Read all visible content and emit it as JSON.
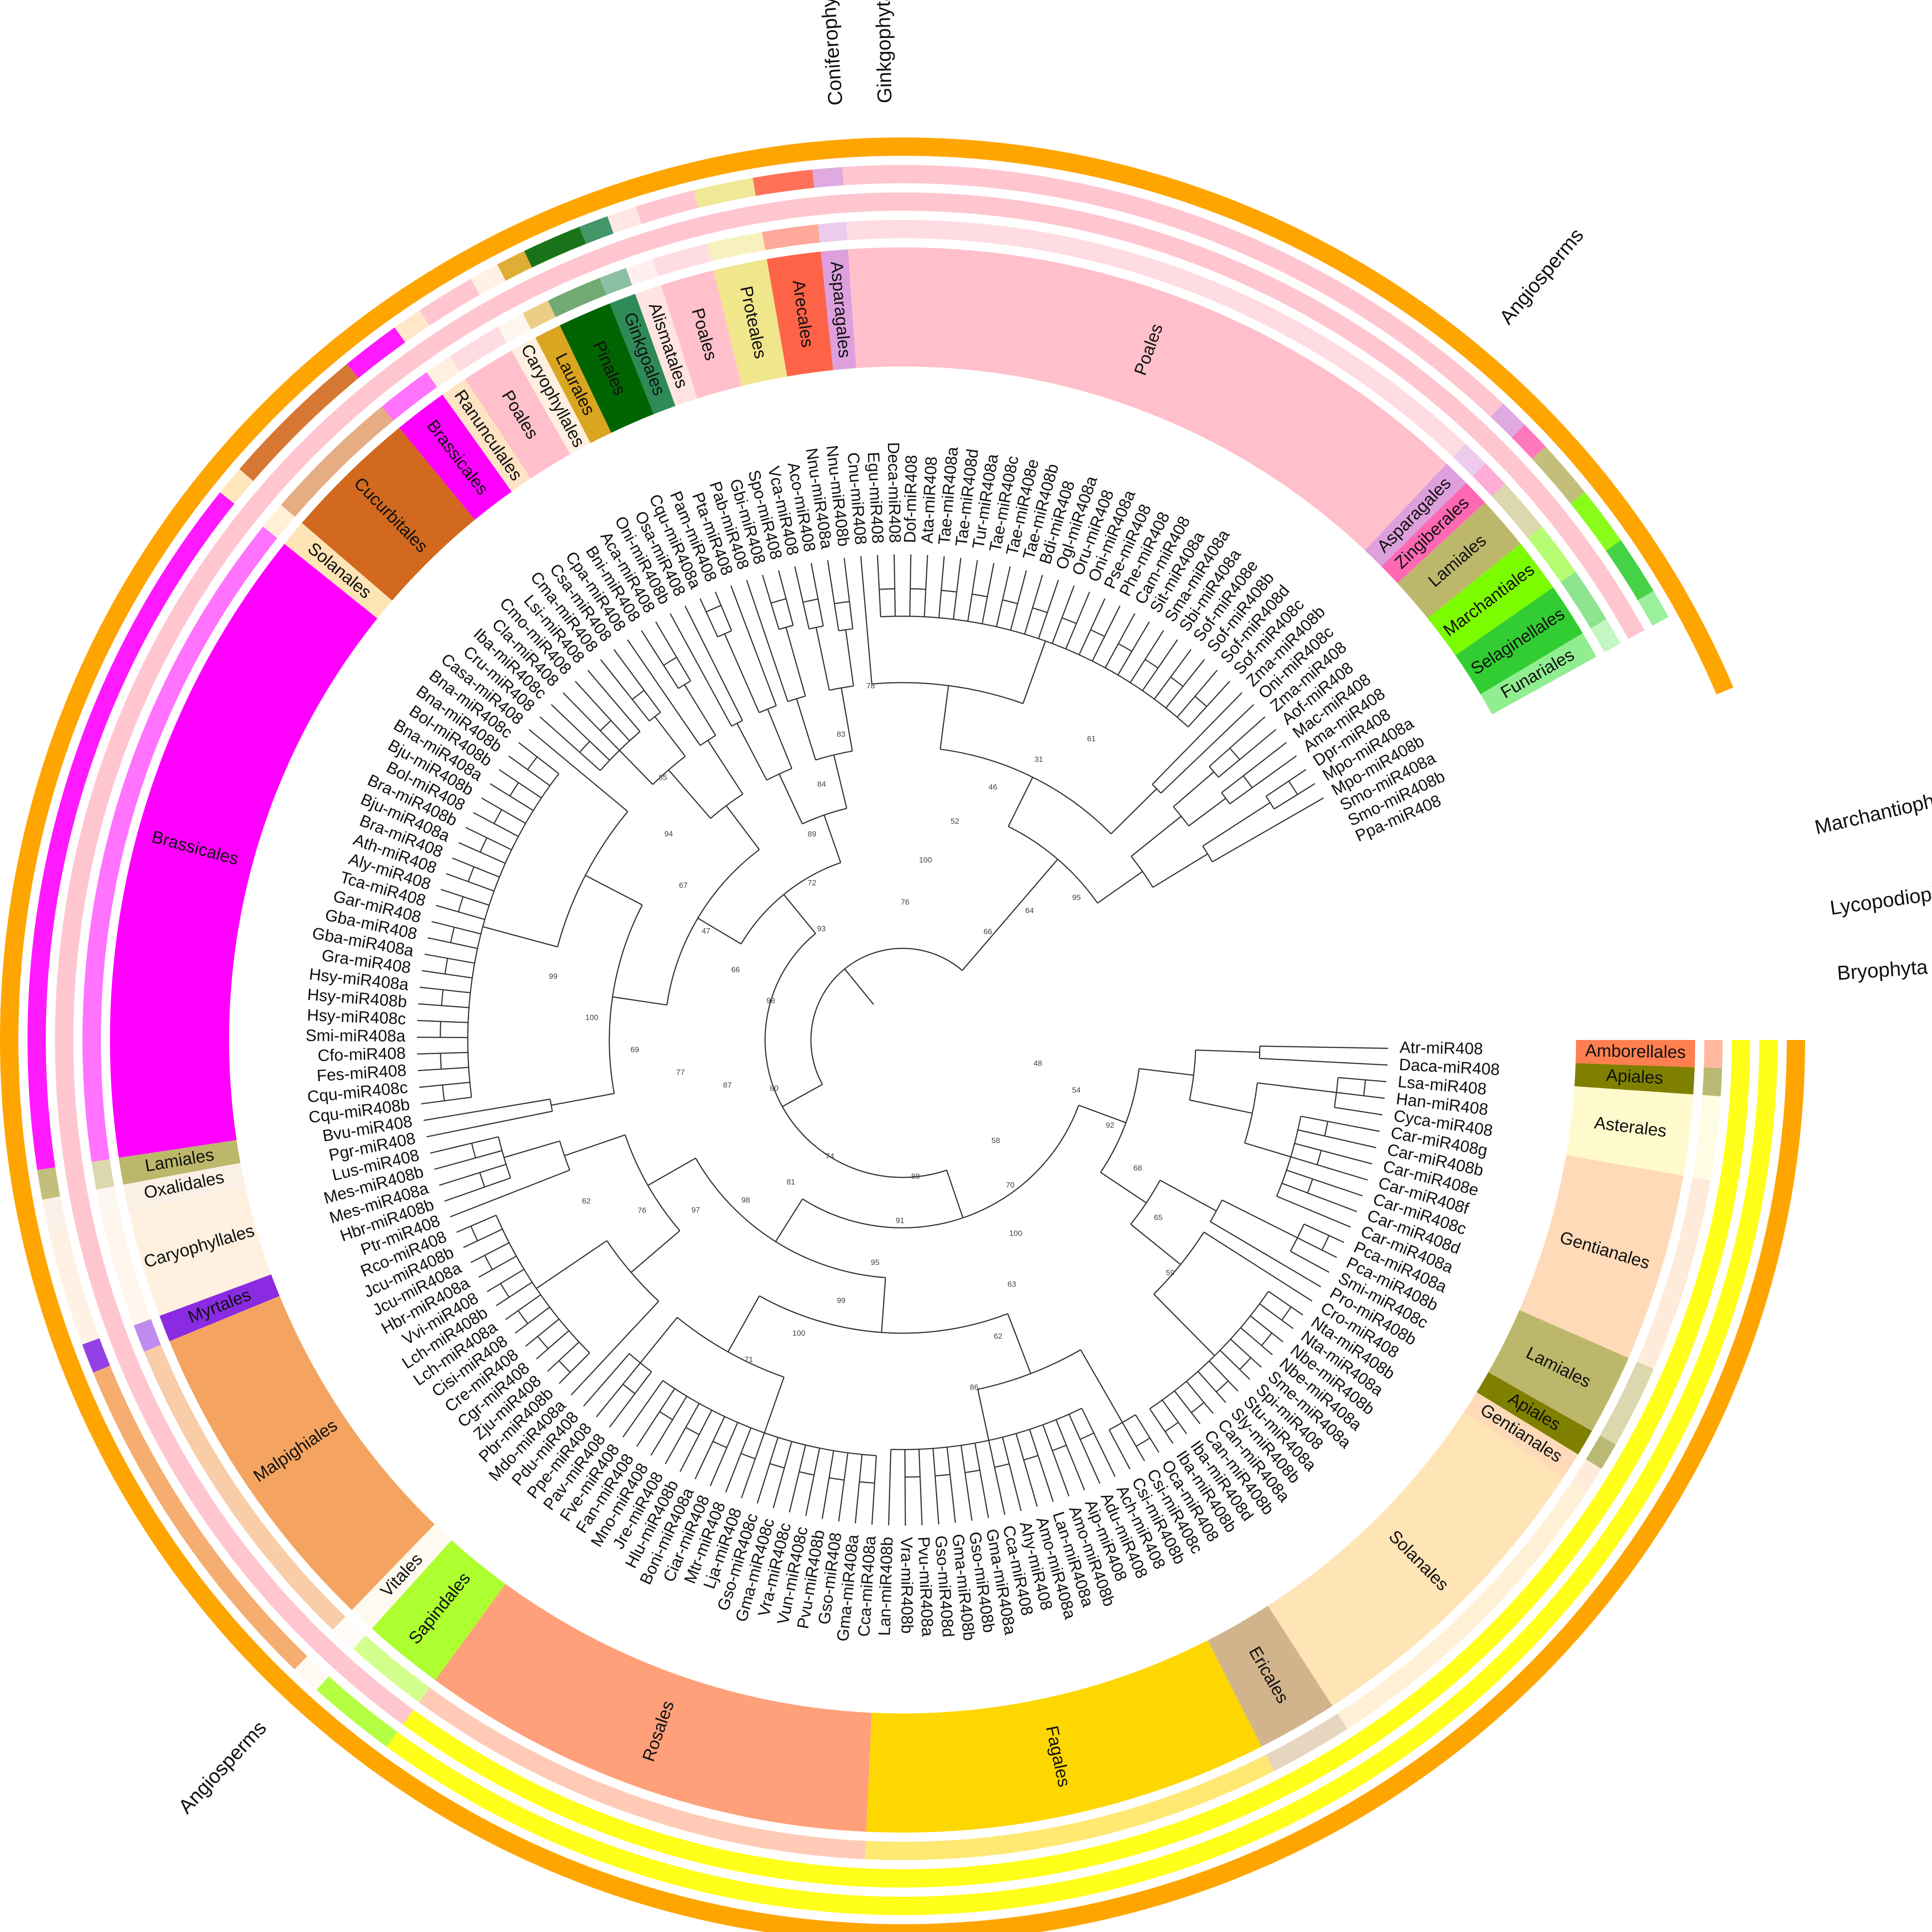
{
  "figure": {
    "outer_labels": [
      {
        "text": "Coniferophyta",
        "angle": -94,
        "side": "out"
      },
      {
        "text": "Ginkgophyta",
        "angle": -91,
        "side": "out"
      },
      {
        "text": "Angiosperms",
        "angle": -50,
        "side": "out"
      },
      {
        "text": "Marchantiophyta",
        "angle": -13,
        "side": "out"
      },
      {
        "text": "Lycopodiophyta",
        "angle": -8,
        "side": "out"
      },
      {
        "text": "Bryophyta",
        "angle": -4,
        "side": "out"
      },
      {
        "text": "Angiosperms",
        "angle": 133,
        "side": "out"
      }
    ],
    "colors": {
      "Brassicales": "#ff00ff",
      "Cucurbitales": "#d2691e",
      "Solanales": "#ffe4b5",
      "Ranunculales": "#ffe4c4",
      "Poales": "#ffc0cb",
      "Caryophyllales": "#fff0e0",
      "Laurales": "#daa520",
      "Pinales": "#006400",
      "Ginkgoales": "#2e8b57",
      "Alismatales": "#ffe4e1",
      "Proteales": "#f0e68c",
      "Arecales": "#ff6347",
      "Asparagales": "#dda0dd",
      "Zingiberales": "#ff69b4",
      "Lamiales": "#bdb76b",
      "Marchantiales": "#7cfc00",
      "Selaginellales": "#32cd32",
      "Funariales": "#90ee90",
      "Amborellales": "#ff7f50",
      "Apiales": "#808000",
      "Asterales": "#fffacd",
      "Gentianales": "#ffdab9",
      "Ericales": "#d2b48c",
      "Fagales": "#ffd700",
      "Rosales": "#ffa07a",
      "Sapindales": "#adff2f",
      "Vitales": "#fffaf0",
      "Malpighiales": "#f4a460",
      "Myrtales": "#8a2be2",
      "Oxalidales": "#faf0e6",
      "Angiosperms": "#ffa500",
      "Yellow": "#ffff00",
      "Pink": "#ffc0cb"
    }
  },
  "tree": {
    "leaves": [
      "Atr-miR408",
      "Daca-miR408",
      "Lsa-miR408",
      "Han-miR408",
      "Cyca-miR408",
      "Car-miR408g",
      "Car-miR408b",
      "Car-miR408e",
      "Car-miR408f",
      "Car-miR408c",
      "Car-miR408d",
      "Car-miR408a",
      "Pca-miR408a",
      "Pca-miR408b",
      "Smi-miR408c",
      "Pro-miR408b",
      "Cro-miR408",
      "Nta-miR408b",
      "Nta-miR408a",
      "Nbe-miR408b",
      "Nbe-miR408a",
      "Sme-miR408a",
      "Spi-miR408",
      "Stu-miR408a",
      "Sly-miR408b",
      "Can-miR408a",
      "Can-miR408b",
      "Iba-miR408d",
      "Iba-miR408b",
      "Oca-miR408",
      "Csi-miR408c",
      "Csi-miR408b",
      "Ach-miR408",
      "Adu-miR408",
      "Aip-miR408",
      "Amo-miR408b",
      "Lan-miR408a",
      "Amo-miR408a",
      "Ahy-miR408",
      "Cca-miR408",
      "Gma-miR408a",
      "Gso-miR408b",
      "Gma-miR408b",
      "Gso-miR408d",
      "Pvu-miR408a",
      "Vra-miR408b",
      "Lan-miR408b",
      "Cca-miR408a",
      "Gma-miR408a",
      "Gso-miR408",
      "Pvu-miR408b",
      "Vun-miR408c",
      "Vra-miR408c",
      "Gma-miR408c",
      "Gso-miR408c",
      "Lja-miR408",
      "Mtr-miR408",
      "Ciar-miR408",
      "Boni-miR408a",
      "Hlu-miR408b",
      "Jre-miR408",
      "Mno-miR408",
      "Fan-miR408",
      "Fve-miR408",
      "Pav-miR408",
      "Ppe-miR408",
      "Pdu-miR408",
      "Mdo-miR408a",
      "Pbr-miR408b",
      "Zju-miR408",
      "Cgr-miR408",
      "Cre-miR408",
      "Cisi-miR408",
      "Lch-miR408a",
      "Lch-miR408b",
      "Vvi-miR408",
      "Hbr-miR408a",
      "Jcu-miR408a",
      "Jcu-miR408b",
      "Rco-miR408",
      "Ptr-miR408",
      "Hbr-miR408b",
      "Mes-miR408a",
      "Mes-miR408b",
      "Lus-miR408",
      "Pgr-miR408",
      "Bvu-miR408",
      "Cqu-miR408b",
      "Cqu-miR408c",
      "Fes-miR408",
      "Cfo-miR408",
      "Smi-miR408a",
      "Hsy-miR408c",
      "Hsy-miR408b",
      "Hsy-miR408a",
      "Gra-miR408",
      "Gba-miR408a",
      "Gba-miR408",
      "Gar-miR408",
      "Tca-miR408",
      "Aly-miR408",
      "Ath-miR408",
      "Bra-miR408",
      "Bju-miR408a",
      "Bra-miR408b",
      "Bol-miR408",
      "Bju-miR408b",
      "Bna-miR408a",
      "Bol-miR408b",
      "Bna-miR408b",
      "Bna-miR408c",
      "Casa-miR408",
      "Cru-miR408",
      "Iba-miR408c",
      "Cla-miR408",
      "Cmo-miR408",
      "Lsi-miR408",
      "Cma-miR408",
      "Csa-miR408",
      "Cpa-miR408",
      "Bni-miR408",
      "Aca-miR408",
      "Oni-miR408b",
      "Osa-miR408",
      "Cqu-miR408a",
      "Pam-miR408",
      "Pta-miR408",
      "Pab-miR408",
      "Gbi-miR408",
      "Spo-miR408",
      "Vca-miR408",
      "Aco-miR408",
      "Nnu-miR408a",
      "Nnu-miR408b",
      "Cnu-miR408",
      "Egu-miR408",
      "Deca-miR408",
      "Dof-miR408",
      "Ata-miR408",
      "Tae-miR408a",
      "Tae-miR408d",
      "Tur-miR408a",
      "Tae-miR408c",
      "Tae-miR408e",
      "Tae-miR408b",
      "Bdi-miR408",
      "Ogl-miR408a",
      "Oru-miR408",
      "Oni-miR408a",
      "Pse-miR408",
      "Phe-miR408",
      "Cam-miR408",
      "Sit-miR408a",
      "Sma-miR408a",
      "Sbi-miR408a",
      "Sof-miR408e",
      "Sof-miR408b",
      "Sof-miR408d",
      "Sof-miR408c",
      "Zma-miR408b",
      "Oni-miR408c",
      "Zma-miR408",
      "Aof-miR408",
      "Mac-miR408",
      "Ama-miR408",
      "Dpr-miR408",
      "Mpo-miR408a",
      "Mpo-miR408b",
      "Smo-miR408a",
      "Smo-miR408b",
      "Ppa-miR408"
    ],
    "bootstrap": [
      "48",
      "54",
      "92",
      "68",
      "65",
      "59",
      "58",
      "70",
      "100",
      "63",
      "62",
      "86",
      "88",
      "91",
      "95",
      "99",
      "100",
      "71",
      "74",
      "81",
      "98",
      "97",
      "76",
      "62",
      "80",
      "87",
      "77",
      "69",
      "100",
      "99",
      "98",
      "66",
      "47",
      "67",
      "94",
      "85",
      "93",
      "72",
      "89",
      "84",
      "83",
      "78",
      "76",
      "100",
      "52",
      "46",
      "31",
      "61",
      "66",
      "64",
      "95"
    ]
  },
  "rings": {
    "order_sectors": [
      {
        "name": "Amborellales",
        "start": 0,
        "end": 1
      },
      {
        "name": "Apiales",
        "start": 1,
        "end": 2
      },
      {
        "name": "Asterales",
        "start": 2,
        "end": 5
      },
      {
        "name": "Gentianales",
        "start": 5,
        "end": 12
      },
      {
        "name": "Lamiales",
        "start": 12,
        "end": 15
      },
      {
        "name": "Apiales",
        "start": 15,
        "end": 16
      },
      {
        "name": "Gentianales",
        "start": 16,
        "end": 17
      },
      {
        "name": "Solanales",
        "start": 17,
        "end": 29
      },
      {
        "name": "Ericales",
        "start": 29,
        "end": 32
      },
      {
        "name": "Fagales",
        "start": 32,
        "end": 47
      },
      {
        "name": "Rosales",
        "start": 47,
        "end": 64
      },
      {
        "name": "Sapindales",
        "start": 64,
        "end": 67
      },
      {
        "name": "Vitales",
        "start": 67,
        "end": 68
      },
      {
        "name": "Malpighiales",
        "start": 68,
        "end": 80
      },
      {
        "name": "Myrtales",
        "start": 80,
        "end": 81
      },
      {
        "name": "Caryophyllales",
        "start": 81,
        "end": 85
      },
      {
        "name": "Oxalidales",
        "start": 85,
        "end": 86
      },
      {
        "name": "Lamiales",
        "start": 86,
        "end": 87
      },
      {
        "name": "Brassicales",
        "start": 87,
        "end": 111
      },
      {
        "name": "Solanales",
        "start": 111,
        "end": 112
      },
      {
        "name": "Cucurbitales",
        "start": 112,
        "end": 117
      },
      {
        "name": "Brassicales",
        "start": 117,
        "end": 119
      },
      {
        "name": "Ranunculales",
        "start": 119,
        "end": 120
      },
      {
        "name": "Poales",
        "start": 120,
        "end": 122
      },
      {
        "name": "Caryophyllales",
        "start": 122,
        "end": 123
      },
      {
        "name": "Laurales",
        "start": 123,
        "end": 124
      },
      {
        "name": "Pinales",
        "start": 124,
        "end": 126
      },
      {
        "name": "Ginkgoales",
        "start": 126,
        "end": 127
      },
      {
        "name": "Alismatales",
        "start": 127,
        "end": 128
      },
      {
        "name": "Poales",
        "start": 128,
        "end": 130
      },
      {
        "name": "Proteales",
        "start": 130,
        "end": 132
      },
      {
        "name": "Arecales",
        "start": 132,
        "end": 134
      },
      {
        "name": "Asparagales",
        "start": 134,
        "end": 135
      },
      {
        "name": "Poales",
        "start": 135,
        "end": 159
      },
      {
        "name": "Asparagales",
        "start": 159,
        "end": 160
      },
      {
        "name": "Zingiberales",
        "start": 160,
        "end": 161
      },
      {
        "name": "Lamiales",
        "start": 161,
        "end": 163
      },
      {
        "name": "Marchantiales",
        "start": 163,
        "end": 165
      },
      {
        "name": "Selaginellales",
        "start": 165,
        "end": 167
      },
      {
        "name": "Funariales",
        "start": 167,
        "end": 168
      }
    ]
  }
}
